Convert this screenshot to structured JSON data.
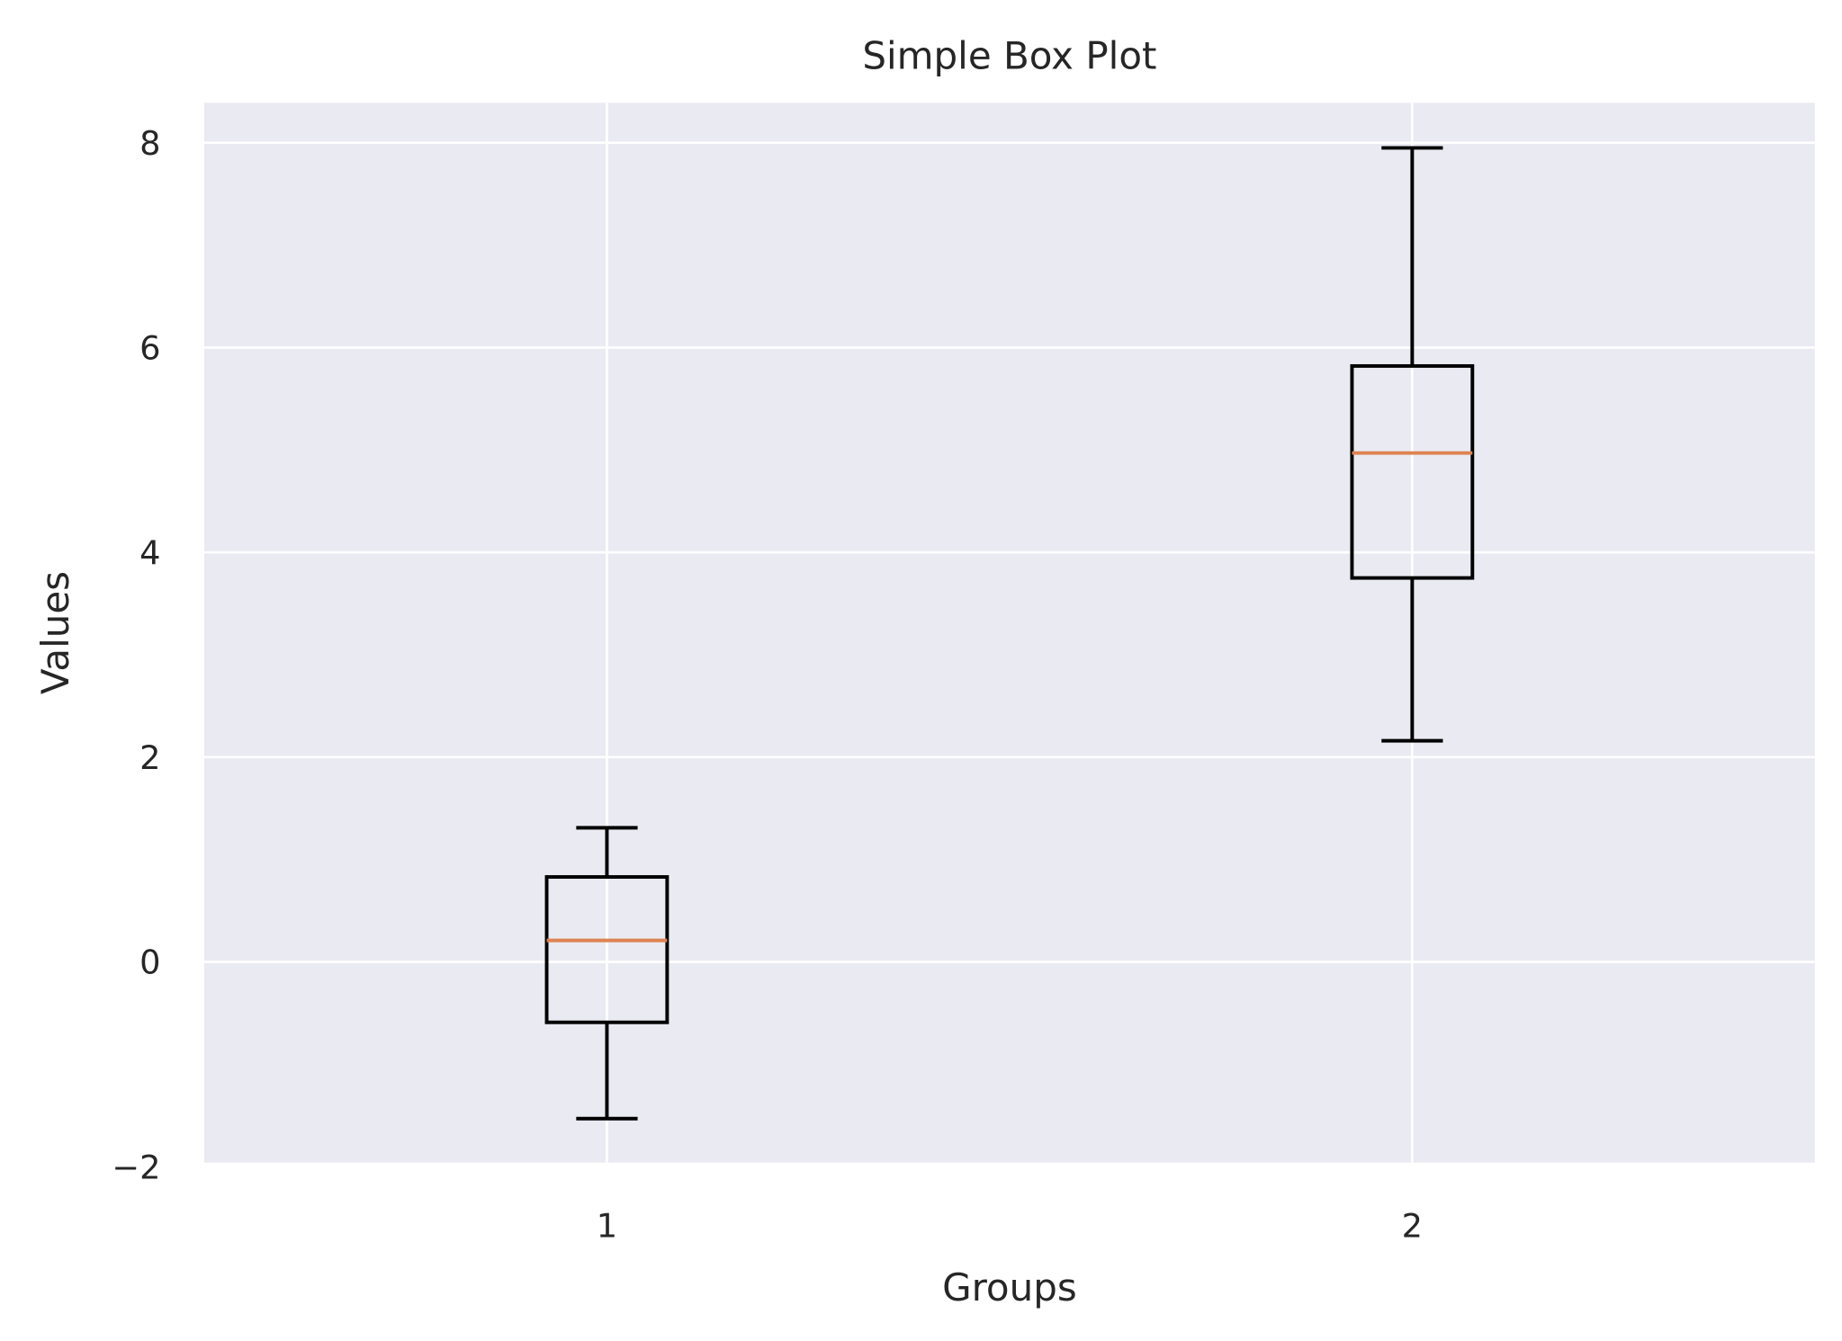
{
  "chart_data": {
    "type": "box",
    "title": "Simple Box Plot",
    "xlabel": "Groups",
    "ylabel": "Values",
    "categories": [
      "1",
      "2"
    ],
    "boxes": [
      {
        "name": "1",
        "whisker_low": -1.53,
        "q1": -0.59,
        "median": 0.21,
        "q3": 0.83,
        "whisker_high": 1.31
      },
      {
        "name": "2",
        "whisker_low": 2.16,
        "q1": 3.75,
        "median": 4.97,
        "q3": 5.82,
        "whisker_high": 7.95
      }
    ],
    "ylim": [
      -1.96,
      8.39
    ],
    "xlim": [
      0.5,
      2.5
    ],
    "yticks": [
      -2,
      0,
      2,
      4,
      6,
      8
    ],
    "ytick_labels": [
      "−2",
      "0",
      "2",
      "4",
      "6",
      "8"
    ],
    "xticks": [
      1,
      2
    ],
    "grid": true,
    "colors": {
      "background": "#eaeaf2",
      "grid": "#ffffff",
      "box": "#000000",
      "median": "#dd8452"
    }
  }
}
